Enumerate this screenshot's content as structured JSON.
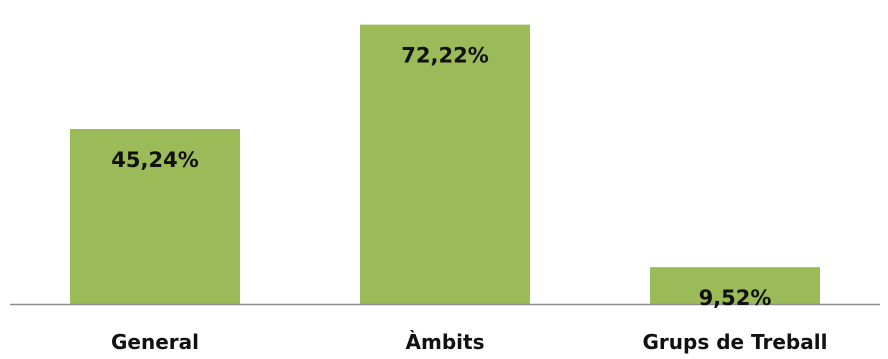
{
  "chart_data": {
    "type": "bar",
    "categories": [
      "General",
      "Àmbits",
      "Grups de Treball"
    ],
    "values": [
      45.24,
      72.22,
      9.52
    ],
    "data_labels": [
      "45,24%",
      "72,22%",
      "9,52%"
    ],
    "title": "",
    "xlabel": "",
    "ylabel": "",
    "ylim": [
      0,
      76
    ],
    "grid": false,
    "legend": "none",
    "colors": {
      "bar": "#9BBB59",
      "axis": "#8C8C8C",
      "text": "#111111"
    }
  }
}
